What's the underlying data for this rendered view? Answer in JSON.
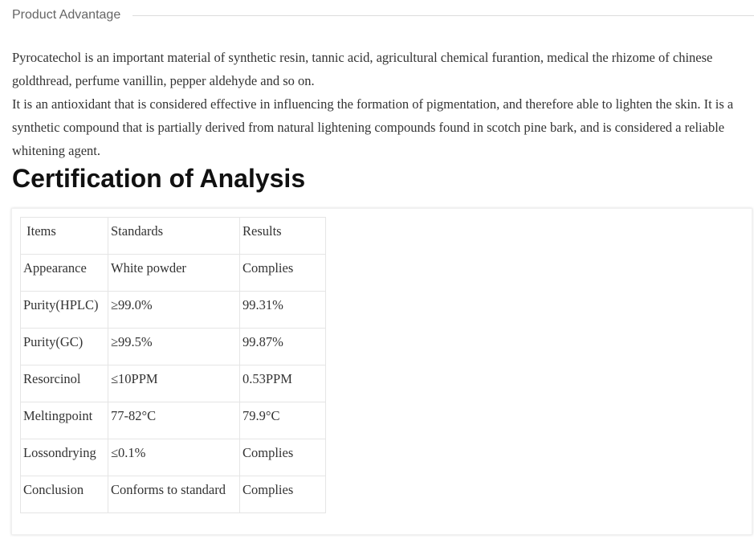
{
  "section_title": "Product Advantage",
  "paragraphs": [
    "Pyrocatechol is an important material of synthetic resin, tannic acid, agricultural chemical furantion, medical the rhizome of chinese goldthread, perfume vanillin, pepper aldehyde and so on.",
    "It is an antioxidant that is considered effective in influencing the formation of pigmentation, and therefore able to lighten the skin. It is a synthetic compound that is partially derived from natural lightening compounds found in scotch pine bark, and is considered a reliable whitening agent."
  ],
  "coa_title": "Certification of Analysis",
  "table": {
    "headers": [
      " Items",
      "Standards",
      "Results"
    ],
    "rows": [
      [
        "Appearance",
        "White powder",
        "Complies"
      ],
      [
        "Purity(HPLC)",
        "≥99.0%",
        "99.31%"
      ],
      [
        "Purity(GC)",
        "≥99.5%",
        "99.87%"
      ],
      [
        "Resorcinol",
        "≤10PPM",
        "0.53PPM"
      ],
      [
        "Meltingpoint",
        "77-82°C",
        "79.9°C"
      ],
      [
        "Lossondrying",
        "≤0.1%",
        "Complies"
      ],
      [
        "Conclusion",
        "Conforms to standard",
        "Complies"
      ]
    ]
  }
}
